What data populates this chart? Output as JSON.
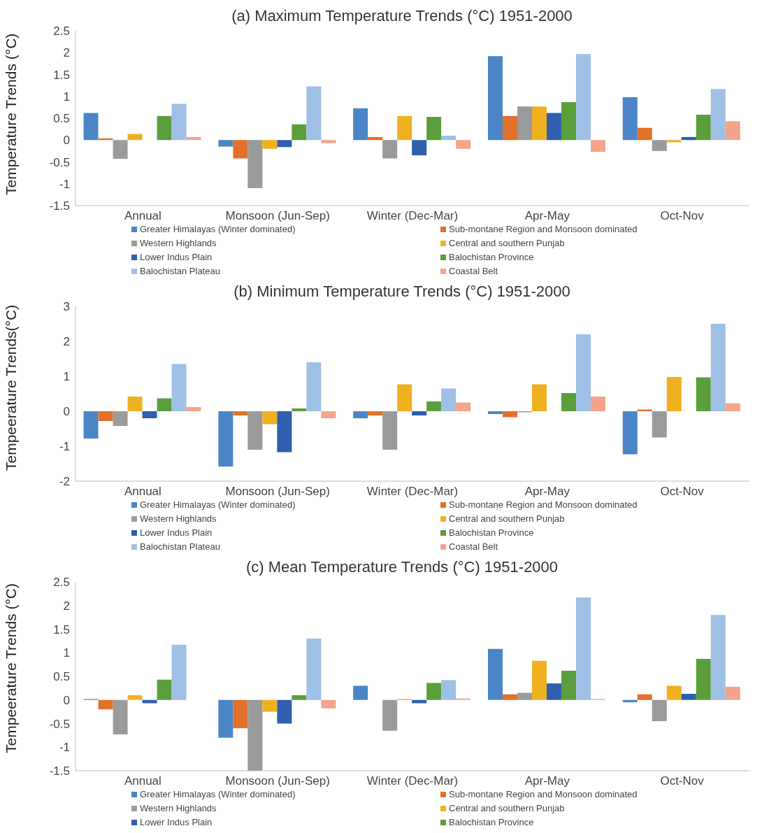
{
  "chart_data": [
    {
      "type": "bar",
      "title": "(a) Maximum Temperature Trends (°C) 1951-2000",
      "ylabel": "Temperature Trends (°C)",
      "categories": [
        "Annual",
        "Monsoon (Jun-Sep)",
        "Winter (Dec-Mar)",
        "Apr-May",
        "Oct-Nov"
      ],
      "ylim": [
        -1.5,
        2.5
      ],
      "yticks": [
        -1.5,
        -1,
        -0.5,
        0,
        0.5,
        1,
        1.5,
        2,
        2.5
      ],
      "grid": false,
      "legend": "bottom",
      "series": [
        {
          "name": "Greater Himalayas (Winter dominated)",
          "color": "#4a86c5",
          "values": [
            0.62,
            -0.15,
            0.73,
            1.92,
            0.98
          ]
        },
        {
          "name": "Sub-montane Region and Monsoon dominated",
          "color": "#e2712b",
          "values": [
            0.04,
            -0.42,
            0.07,
            0.55,
            0.28
          ]
        },
        {
          "name": "Western Highlands",
          "color": "#9a9a9a",
          "values": [
            -0.43,
            -1.1,
            -0.42,
            0.77,
            -0.25
          ]
        },
        {
          "name": "Central and southern Punjab",
          "color": "#f0b120",
          "values": [
            0.14,
            -0.2,
            0.55,
            0.77,
            -0.05
          ]
        },
        {
          "name": "Lower Indus Plain",
          "color": "#2f5fad",
          "values": [
            0,
            -0.16,
            -0.35,
            0.62,
            0.07
          ]
        },
        {
          "name": "Balochistan Province",
          "color": "#5b9e3c",
          "values": [
            0.55,
            0.36,
            0.53,
            0.87,
            0.58
          ]
        },
        {
          "name": "Balochistan Plateau",
          "color": "#9dc0e4",
          "values": [
            0.83,
            1.23,
            0.1,
            1.97,
            1.17
          ]
        },
        {
          "name": "Coastal Belt",
          "color": "#f4a48c",
          "values": [
            0.07,
            -0.07,
            -0.2,
            -0.27,
            0.43
          ]
        }
      ]
    },
    {
      "type": "bar",
      "title": "(b) Minimum Temperature Trends (°C) 1951-2000",
      "ylabel": "Tempeerature Trends(°C)",
      "categories": [
        "Annual",
        "Monsoon (Jun-Sep)",
        "Winter (Dec-Mar)",
        "Apr-May",
        "Oct-Nov"
      ],
      "ylim": [
        -2,
        3
      ],
      "yticks": [
        -2,
        -1,
        0,
        1,
        2,
        3
      ],
      "grid": false,
      "legend": "bottom",
      "series": [
        {
          "name": "Greater Himalayas (Winter dominated)",
          "color": "#4a86c5",
          "values": [
            -0.78,
            -1.58,
            -0.2,
            -0.08,
            -1.23
          ]
        },
        {
          "name": "Sub-montane Region and Monsoon dominated",
          "color": "#e2712b",
          "values": [
            -0.28,
            -0.12,
            -0.12,
            -0.17,
            0.05
          ]
        },
        {
          "name": "Western Highlands",
          "color": "#9a9a9a",
          "values": [
            -0.42,
            -1.1,
            -1.1,
            -0.03,
            -0.75
          ]
        },
        {
          "name": "Central and southern Punjab",
          "color": "#f0b120",
          "values": [
            0.42,
            -0.37,
            0.77,
            0.77,
            0.98
          ]
        },
        {
          "name": "Lower Indus Plain",
          "color": "#2f5fad",
          "values": [
            -0.2,
            -1.17,
            -0.12,
            0,
            0
          ]
        },
        {
          "name": "Balochistan Province",
          "color": "#5b9e3c",
          "values": [
            0.37,
            0.08,
            0.28,
            0.52,
            0.97
          ]
        },
        {
          "name": "Balochistan Plateau",
          "color": "#9dc0e4",
          "values": [
            1.35,
            1.4,
            0.65,
            2.2,
            2.5
          ]
        },
        {
          "name": "Coastal Belt",
          "color": "#f4a48c",
          "values": [
            0.12,
            -0.2,
            0.25,
            0.42,
            0.23
          ]
        }
      ]
    },
    {
      "type": "bar",
      "title": "(c) Mean Temperature Trends (°C) 1951-2000",
      "ylabel": "Tempeerature Trends (°C)",
      "categories": [
        "Annual",
        "Monsoon (Jun-Sep)",
        "Winter (Dec-Mar)",
        "Apr-May",
        "Oct-Nov"
      ],
      "ylim": [
        -1.5,
        2.5
      ],
      "yticks": [
        -1.5,
        -1,
        -0.5,
        0,
        0.5,
        1,
        1.5,
        2,
        2.5
      ],
      "grid": false,
      "legend": "bottom",
      "series": [
        {
          "name": "Greater Himalayas (Winter dominated)",
          "color": "#4a86c5",
          "values": [
            0.02,
            -0.8,
            0.3,
            1.08,
            -0.05
          ]
        },
        {
          "name": "Sub-montane Region and Monsoon dominated",
          "color": "#e2712b",
          "values": [
            -0.2,
            -0.6,
            0,
            0.12,
            0.12
          ]
        },
        {
          "name": "Western Highlands",
          "color": "#9a9a9a",
          "values": [
            -0.73,
            -1.5,
            -0.65,
            0.15,
            -0.45
          ]
        },
        {
          "name": "Central and southern Punjab",
          "color": "#f0b120",
          "values": [
            0.1,
            -0.25,
            0.02,
            0.83,
            0.3
          ]
        },
        {
          "name": "Lower Indus Plain",
          "color": "#2f5fad",
          "values": [
            -0.07,
            -0.5,
            -0.07,
            0.35,
            0.13
          ]
        },
        {
          "name": "Balochistan Province",
          "color": "#5b9e3c",
          "values": [
            0.43,
            0.1,
            0.36,
            0.62,
            0.87
          ]
        },
        {
          "color": "#9dc0e4",
          "values": [
            1.17,
            1.3,
            0.42,
            2.17,
            1.8
          ]
        },
        {
          "color": "#f4a48c",
          "values": [
            0,
            -0.18,
            0.03,
            0.02,
            0.28
          ]
        }
      ]
    }
  ]
}
